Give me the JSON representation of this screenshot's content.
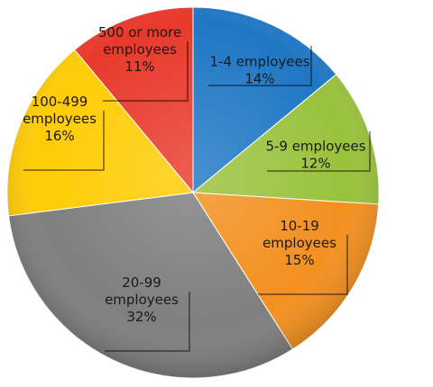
{
  "chart_data": {
    "type": "pie",
    "start_angle_deg": 0,
    "direction": "clockwise",
    "slices": [
      {
        "label_lines": [
          "1-4 employees",
          "14%"
        ],
        "category": "1-4 employees",
        "value": 14,
        "color": "#1f77c4"
      },
      {
        "label_lines": [
          "5-9 employees",
          "12%"
        ],
        "category": "5-9 employees",
        "value": 12,
        "color": "#99c23c"
      },
      {
        "label_lines": [
          "10-19",
          "employees",
          "15%"
        ],
        "category": "10-19 employees",
        "value": 15,
        "color": "#f39020"
      },
      {
        "label_lines": [
          "20-99",
          "employees",
          "32%"
        ],
        "category": "20-99 employees",
        "value": 32,
        "color": "#7f7f7f"
      },
      {
        "label_lines": [
          "100-499",
          "employees",
          "16%"
        ],
        "category": "100-499 employees",
        "value": 16,
        "color": "#ffcc05"
      },
      {
        "label_lines": [
          "500 or more",
          "employees",
          "11%"
        ],
        "category": "500 or more employees",
        "value": 11,
        "color": "#e8392b"
      }
    ]
  }
}
